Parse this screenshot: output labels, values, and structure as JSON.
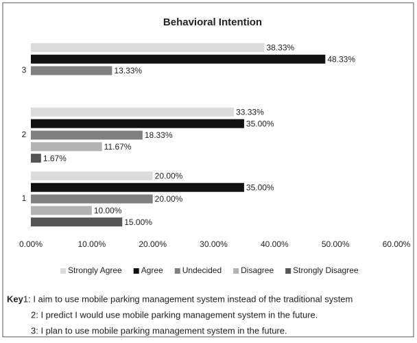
{
  "chart_data": {
    "type": "hbar",
    "title": "Behavioral Intention",
    "categories": [
      "1",
      "2",
      "3"
    ],
    "series": [
      {
        "name": "Strongly Agree",
        "color": "#dcdcdc",
        "values": [
          20,
          33.33,
          38.33
        ],
        "value_labels": [
          "20.00%",
          "33.33%",
          "38.33%"
        ]
      },
      {
        "name": "Agree",
        "color": "#111111",
        "values": [
          35,
          35,
          48.33
        ],
        "value_labels": [
          "35.00%",
          "35.00%",
          "48.33%"
        ]
      },
      {
        "name": "Undecided",
        "color": "#808080",
        "values": [
          20,
          18.33,
          13.33
        ],
        "value_labels": [
          "20.00%",
          "18.33%",
          "13.33%"
        ]
      },
      {
        "name": "Disagree",
        "color": "#b3b3b3",
        "values": [
          10,
          11.67,
          null
        ],
        "value_labels": [
          "10.00%",
          "11.67%",
          null
        ]
      },
      {
        "name": "Strongly Disagree",
        "color": "#555555",
        "values": [
          15,
          1.67,
          null
        ],
        "value_labels": [
          "15.00%",
          "1.67%",
          null
        ]
      }
    ],
    "xlim": [
      0,
      60
    ],
    "xticks": [
      {
        "value": 0,
        "label": "0.00%"
      },
      {
        "value": 10,
        "label": "10.00%"
      },
      {
        "value": 20,
        "label": "20.00%"
      },
      {
        "value": 30,
        "label": "30.00%"
      },
      {
        "value": 40,
        "label": "40.00%"
      },
      {
        "value": 50,
        "label": "50.00%"
      },
      {
        "value": 60,
        "label": "60.00%"
      }
    ],
    "legend": "bottom",
    "key": {
      "label": "Key",
      "lines": [
        "1: I aim to use mobile parking management system instead of the traditional system",
        "2: I predict I would use mobile parking management system in the future.",
        "3: I plan to use mobile parking management system in the future."
      ]
    }
  }
}
